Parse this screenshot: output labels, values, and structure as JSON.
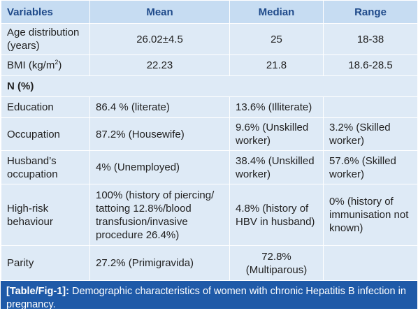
{
  "table": {
    "headers": [
      "Variables",
      "Mean",
      "Median",
      "Range"
    ],
    "rows": {
      "age": {
        "variable": "Age distribution (years)",
        "mean": "26.02±4.5",
        "median": "25",
        "range": "18-38"
      },
      "bmi": {
        "variable_prefix": "BMI (kg/m",
        "variable_sup": "2",
        "variable_suffix": ")",
        "mean": "22.23",
        "median": "21.8",
        "range": "18.6-28.5"
      },
      "n_percent": {
        "label": "N (%)"
      },
      "education": {
        "variable": "Education",
        "c1": "86.4 % (literate)",
        "c2": "13.6% (Illiterate)",
        "c3": ""
      },
      "occupation": {
        "variable": "Occupation",
        "c1": "87.2% (Housewife)",
        "c2": "9.6% (Unskilled worker)",
        "c3": "3.2% (Skilled worker)"
      },
      "husband_occupation": {
        "variable": "Husband’s occupation",
        "c1": "4% (Unemployed)",
        "c2": "38.4% (Unskilled worker)",
        "c3": "57.6% (Skilled worker)"
      },
      "high_risk": {
        "variable": "High-risk behaviour",
        "c1": "100% (history of piercing/ tattoing 12.8%/blood transfusion/invasive procedure 26.4%)",
        "c2": "4.8% (history of HBV in husband)",
        "c3": "0% (history of immunisation not known)"
      },
      "parity": {
        "variable": "Parity",
        "c1": "27.2% (Primigravida)",
        "c2": "72.8% (Multiparous)",
        "c3": ""
      }
    }
  },
  "caption": {
    "label": "[Table/Fig-1]:",
    "text": " Demographic characteristics of women with chronic Hepatitis B infection in pregnancy."
  }
}
